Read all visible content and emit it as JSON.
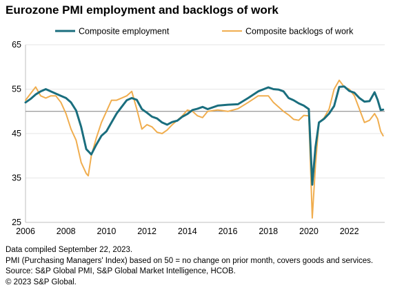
{
  "title": "Eurozone PMI employment and backlogs of work",
  "notes": [
    "Data compiled September 22, 2023.",
    "PMI (Purchasing Managers' Index) based on 50 = no change on prior month, covers goods and services.",
    "Source: S&P Global PMI, S&P Global Market Intelligence, HCOB.",
    "© 2023 S&P Global."
  ],
  "colors": {
    "employment": "#1a6e7e",
    "backlogs": "#f0ad4e",
    "reference": "#7f7f7f",
    "grid": "#e6e6e6",
    "axis": "#bfbfbf"
  },
  "chart_data": {
    "type": "line",
    "title": "Eurozone PMI employment and backlogs of work",
    "xlabel": "",
    "ylabel": "",
    "xlim": [
      2006,
      2023.75
    ],
    "ylim": [
      25,
      65
    ],
    "yticks": [
      25,
      35,
      45,
      55,
      65
    ],
    "xticks": [
      2006,
      2008,
      2010,
      2012,
      2014,
      2016,
      2018,
      2020,
      2022
    ],
    "reference_line": 50,
    "grid": "horizontal",
    "legend_position": "top",
    "series": [
      {
        "name": "Composite employment",
        "color": "#1a6e7e",
        "x": [
          2006.0,
          2006.25,
          2006.5,
          2006.75,
          2007.0,
          2007.25,
          2007.5,
          2007.75,
          2008.0,
          2008.25,
          2008.5,
          2008.75,
          2009.0,
          2009.25,
          2009.5,
          2009.75,
          2010.0,
          2010.25,
          2010.5,
          2010.75,
          2011.0,
          2011.25,
          2011.5,
          2011.75,
          2012.0,
          2012.25,
          2012.5,
          2012.75,
          2013.0,
          2013.25,
          2013.5,
          2013.75,
          2014.0,
          2014.25,
          2014.5,
          2014.75,
          2015.0,
          2015.5,
          2016.0,
          2016.5,
          2017.0,
          2017.5,
          2018.0,
          2018.25,
          2018.5,
          2018.75,
          2019.0,
          2019.25,
          2019.5,
          2019.75,
          2020.0,
          2020.17,
          2020.33,
          2020.5,
          2020.75,
          2021.0,
          2021.25,
          2021.5,
          2021.75,
          2022.0,
          2022.25,
          2022.5,
          2022.75,
          2023.0,
          2023.25,
          2023.4,
          2023.55,
          2023.67
        ],
        "values": [
          52.0,
          52.8,
          53.8,
          54.5,
          55.0,
          54.5,
          54.0,
          53.5,
          53.0,
          52.0,
          50.2,
          46.5,
          41.5,
          40.3,
          42.5,
          44.5,
          45.5,
          47.5,
          49.5,
          51.0,
          52.5,
          53.0,
          52.6,
          50.5,
          49.7,
          48.8,
          48.4,
          47.5,
          47.0,
          47.6,
          47.9,
          48.8,
          49.4,
          50.3,
          50.6,
          51.0,
          50.5,
          51.3,
          51.5,
          51.6,
          53.0,
          54.5,
          55.4,
          55.0,
          54.9,
          54.5,
          53.0,
          52.5,
          51.8,
          51.3,
          50.5,
          33.5,
          42.0,
          47.5,
          48.3,
          49.5,
          51.2,
          55.5,
          55.6,
          54.6,
          54.2,
          53.0,
          52.2,
          52.3,
          54.3,
          52.6,
          50.3,
          50.4
        ]
      },
      {
        "name": "Composite backlogs of work",
        "color": "#f0ad4e",
        "x": [
          2006.0,
          2006.25,
          2006.5,
          2006.75,
          2007.0,
          2007.25,
          2007.5,
          2007.75,
          2008.0,
          2008.25,
          2008.5,
          2008.75,
          2009.0,
          2009.1,
          2009.25,
          2009.5,
          2009.75,
          2010.0,
          2010.25,
          2010.5,
          2010.75,
          2011.0,
          2011.25,
          2011.5,
          2011.75,
          2012.0,
          2012.25,
          2012.5,
          2012.75,
          2013.0,
          2013.25,
          2013.5,
          2013.75,
          2014.0,
          2014.25,
          2014.5,
          2014.75,
          2015.0,
          2015.5,
          2016.0,
          2016.5,
          2017.0,
          2017.5,
          2018.0,
          2018.25,
          2018.5,
          2018.75,
          2019.0,
          2019.25,
          2019.5,
          2019.75,
          2020.0,
          2020.17,
          2020.33,
          2020.5,
          2020.75,
          2021.0,
          2021.25,
          2021.5,
          2021.75,
          2022.0,
          2022.25,
          2022.5,
          2022.75,
          2023.0,
          2023.25,
          2023.4,
          2023.55,
          2023.67
        ],
        "values": [
          52.5,
          54.0,
          55.5,
          53.5,
          53.0,
          53.5,
          53.5,
          52.0,
          49.5,
          46.0,
          43.5,
          38.5,
          36.0,
          35.5,
          40.0,
          44.0,
          47.5,
          50.0,
          52.5,
          52.5,
          53.0,
          53.5,
          54.5,
          50.5,
          46.0,
          47.0,
          46.5,
          45.3,
          45.0,
          45.8,
          47.0,
          48.0,
          49.0,
          50.3,
          50.0,
          49.0,
          48.6,
          50.0,
          50.3,
          50.0,
          50.6,
          52.0,
          53.5,
          53.5,
          52.0,
          51.0,
          50.0,
          49.2,
          48.2,
          48.0,
          49.1,
          49.0,
          26.0,
          38.0,
          47.5,
          48.5,
          50.5,
          55.0,
          57.0,
          55.5,
          55.0,
          53.5,
          50.5,
          47.5,
          48.0,
          49.5,
          48.3,
          45.5,
          44.5
        ]
      }
    ]
  }
}
